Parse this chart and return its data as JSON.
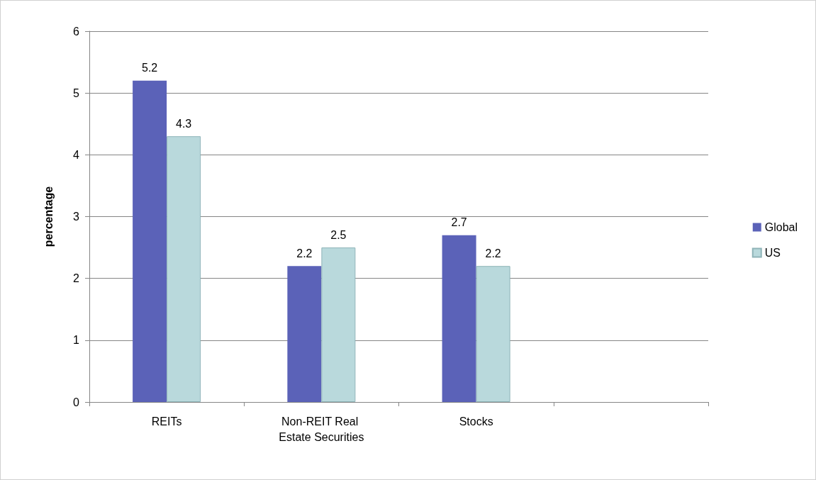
{
  "chart_data": {
    "type": "bar",
    "ylabel": "percentage",
    "categories": [
      "REITs",
      "Non-REIT Real Estate Securities",
      "Stocks",
      null
    ],
    "series": [
      {
        "name": "Global",
        "color": "#5b62b8",
        "values": [
          5.2,
          2.2,
          2.7,
          null
        ]
      },
      {
        "name": "US",
        "color": "#b9d9dc",
        "values": [
          4.3,
          2.5,
          2.2,
          null
        ]
      }
    ],
    "ylim": [
      0,
      6
    ],
    "yticks": [
      0,
      1,
      2,
      3,
      4,
      5,
      6
    ],
    "grid": "y",
    "legend": "right",
    "data_labels": true
  }
}
